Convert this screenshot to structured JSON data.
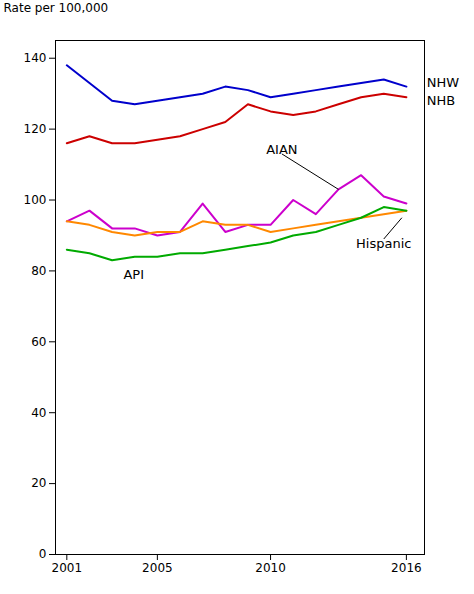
{
  "chart_data": {
    "type": "line",
    "y_label": "Rate per 100,000",
    "x": [
      2001,
      2002,
      2003,
      2004,
      2005,
      2006,
      2007,
      2008,
      2009,
      2010,
      2011,
      2012,
      2013,
      2014,
      2015,
      2016
    ],
    "series": [
      {
        "name": "NHW",
        "color": "#0000cc",
        "values": [
          138,
          133,
          128,
          127,
          128,
          129,
          130,
          132,
          131,
          129,
          130,
          131,
          132,
          133,
          134,
          132
        ]
      },
      {
        "name": "NHB",
        "color": "#cc0000",
        "values": [
          116,
          118,
          116,
          116,
          117,
          118,
          120,
          122,
          127,
          125,
          124,
          125,
          127,
          129,
          130,
          129
        ]
      },
      {
        "name": "AIAN",
        "color": "#cc00cc",
        "values": [
          94,
          97,
          92,
          92,
          90,
          91,
          99,
          91,
          93,
          93,
          100,
          96,
          103,
          107,
          101,
          99
        ]
      },
      {
        "name": "Hispanic",
        "color": "#ff8800",
        "values": [
          94,
          93,
          91,
          90,
          91,
          91,
          94,
          93,
          93,
          91,
          92,
          93,
          94,
          95,
          96,
          97
        ]
      },
      {
        "name": "API",
        "color": "#00aa00",
        "values": [
          86,
          85,
          83,
          84,
          84,
          85,
          85,
          86,
          87,
          88,
          90,
          91,
          93,
          95,
          98,
          97
        ]
      }
    ],
    "annotations": [
      {
        "text": "NHW",
        "x": 2016.9,
        "y": 133
      },
      {
        "text": "NHB",
        "x": 2016.9,
        "y": 128
      },
      {
        "text": "AIAN",
        "x": 2010.5,
        "y": 113,
        "arrow_to": {
          "x": 2013,
          "y": 103
        }
      },
      {
        "text": "Hispanic",
        "x": 2015.0,
        "y": 89,
        "arrow_to": {
          "x": 2015.8,
          "y": 95
        }
      },
      {
        "text": "API",
        "x": 2003.5,
        "y": 79
      }
    ],
    "xlim": [
      2000.5,
      2016.8
    ],
    "xticks": [
      2001,
      2005,
      2010,
      2016
    ],
    "ylim": [
      0,
      145
    ],
    "yticks": [
      0,
      20,
      40,
      60,
      80,
      100,
      120,
      140
    ],
    "grid": false,
    "legend": false
  }
}
